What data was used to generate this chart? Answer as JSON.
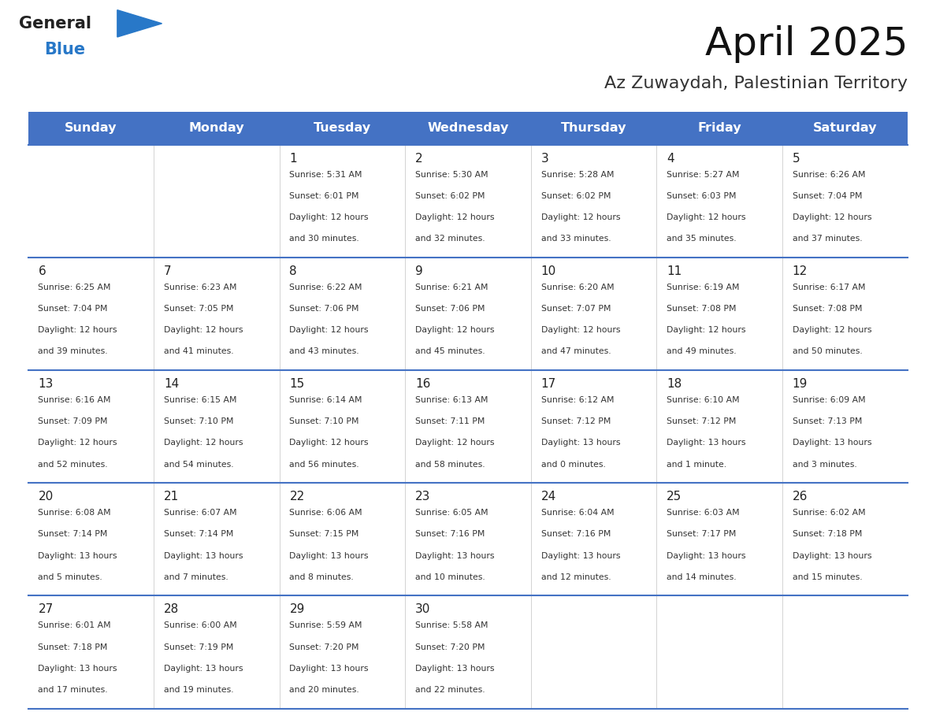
{
  "title": "April 2025",
  "subtitle": "Az Zuwaydah, Palestinian Territory",
  "header_bg_color": "#4472C4",
  "header_text_color": "#FFFFFF",
  "row_line_color": "#4472C4",
  "text_color": "#333333",
  "days_of_week": [
    "Sunday",
    "Monday",
    "Tuesday",
    "Wednesday",
    "Thursday",
    "Friday",
    "Saturday"
  ],
  "weeks": [
    [
      {
        "day": "",
        "info": ""
      },
      {
        "day": "",
        "info": ""
      },
      {
        "day": "1",
        "info": "Sunrise: 5:31 AM\nSunset: 6:01 PM\nDaylight: 12 hours\nand 30 minutes."
      },
      {
        "day": "2",
        "info": "Sunrise: 5:30 AM\nSunset: 6:02 PM\nDaylight: 12 hours\nand 32 minutes."
      },
      {
        "day": "3",
        "info": "Sunrise: 5:28 AM\nSunset: 6:02 PM\nDaylight: 12 hours\nand 33 minutes."
      },
      {
        "day": "4",
        "info": "Sunrise: 5:27 AM\nSunset: 6:03 PM\nDaylight: 12 hours\nand 35 minutes."
      },
      {
        "day": "5",
        "info": "Sunrise: 6:26 AM\nSunset: 7:04 PM\nDaylight: 12 hours\nand 37 minutes."
      }
    ],
    [
      {
        "day": "6",
        "info": "Sunrise: 6:25 AM\nSunset: 7:04 PM\nDaylight: 12 hours\nand 39 minutes."
      },
      {
        "day": "7",
        "info": "Sunrise: 6:23 AM\nSunset: 7:05 PM\nDaylight: 12 hours\nand 41 minutes."
      },
      {
        "day": "8",
        "info": "Sunrise: 6:22 AM\nSunset: 7:06 PM\nDaylight: 12 hours\nand 43 minutes."
      },
      {
        "day": "9",
        "info": "Sunrise: 6:21 AM\nSunset: 7:06 PM\nDaylight: 12 hours\nand 45 minutes."
      },
      {
        "day": "10",
        "info": "Sunrise: 6:20 AM\nSunset: 7:07 PM\nDaylight: 12 hours\nand 47 minutes."
      },
      {
        "day": "11",
        "info": "Sunrise: 6:19 AM\nSunset: 7:08 PM\nDaylight: 12 hours\nand 49 minutes."
      },
      {
        "day": "12",
        "info": "Sunrise: 6:17 AM\nSunset: 7:08 PM\nDaylight: 12 hours\nand 50 minutes."
      }
    ],
    [
      {
        "day": "13",
        "info": "Sunrise: 6:16 AM\nSunset: 7:09 PM\nDaylight: 12 hours\nand 52 minutes."
      },
      {
        "day": "14",
        "info": "Sunrise: 6:15 AM\nSunset: 7:10 PM\nDaylight: 12 hours\nand 54 minutes."
      },
      {
        "day": "15",
        "info": "Sunrise: 6:14 AM\nSunset: 7:10 PM\nDaylight: 12 hours\nand 56 minutes."
      },
      {
        "day": "16",
        "info": "Sunrise: 6:13 AM\nSunset: 7:11 PM\nDaylight: 12 hours\nand 58 minutes."
      },
      {
        "day": "17",
        "info": "Sunrise: 6:12 AM\nSunset: 7:12 PM\nDaylight: 13 hours\nand 0 minutes."
      },
      {
        "day": "18",
        "info": "Sunrise: 6:10 AM\nSunset: 7:12 PM\nDaylight: 13 hours\nand 1 minute."
      },
      {
        "day": "19",
        "info": "Sunrise: 6:09 AM\nSunset: 7:13 PM\nDaylight: 13 hours\nand 3 minutes."
      }
    ],
    [
      {
        "day": "20",
        "info": "Sunrise: 6:08 AM\nSunset: 7:14 PM\nDaylight: 13 hours\nand 5 minutes."
      },
      {
        "day": "21",
        "info": "Sunrise: 6:07 AM\nSunset: 7:14 PM\nDaylight: 13 hours\nand 7 minutes."
      },
      {
        "day": "22",
        "info": "Sunrise: 6:06 AM\nSunset: 7:15 PM\nDaylight: 13 hours\nand 8 minutes."
      },
      {
        "day": "23",
        "info": "Sunrise: 6:05 AM\nSunset: 7:16 PM\nDaylight: 13 hours\nand 10 minutes."
      },
      {
        "day": "24",
        "info": "Sunrise: 6:04 AM\nSunset: 7:16 PM\nDaylight: 13 hours\nand 12 minutes."
      },
      {
        "day": "25",
        "info": "Sunrise: 6:03 AM\nSunset: 7:17 PM\nDaylight: 13 hours\nand 14 minutes."
      },
      {
        "day": "26",
        "info": "Sunrise: 6:02 AM\nSunset: 7:18 PM\nDaylight: 13 hours\nand 15 minutes."
      }
    ],
    [
      {
        "day": "27",
        "info": "Sunrise: 6:01 AM\nSunset: 7:18 PM\nDaylight: 13 hours\nand 17 minutes."
      },
      {
        "day": "28",
        "info": "Sunrise: 6:00 AM\nSunset: 7:19 PM\nDaylight: 13 hours\nand 19 minutes."
      },
      {
        "day": "29",
        "info": "Sunrise: 5:59 AM\nSunset: 7:20 PM\nDaylight: 13 hours\nand 20 minutes."
      },
      {
        "day": "30",
        "info": "Sunrise: 5:58 AM\nSunset: 7:20 PM\nDaylight: 13 hours\nand 22 minutes."
      },
      {
        "day": "",
        "info": ""
      },
      {
        "day": "",
        "info": ""
      },
      {
        "day": "",
        "info": ""
      }
    ]
  ],
  "logo_color_general": "#222222",
  "logo_color_blue": "#2878C8",
  "logo_triangle_color": "#2878C8"
}
